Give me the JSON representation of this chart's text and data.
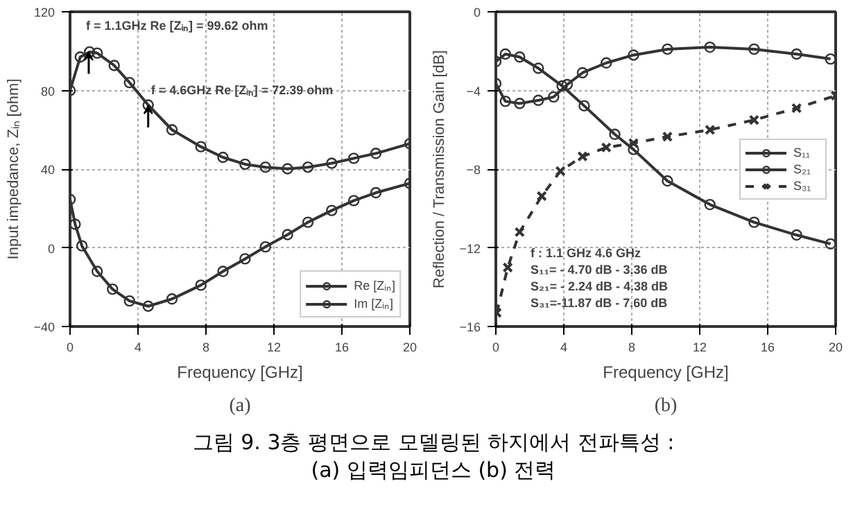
{
  "chart_data": [
    {
      "type": "line",
      "title": "(a)",
      "xlabel": "Frequency [GHz]",
      "ylabel": "Input impedance, Zᵢₙ [ohm]",
      "xlim": [
        0,
        20
      ],
      "ylim": [
        -40,
        120
      ],
      "xticks": [
        0,
        4,
        8,
        12,
        16,
        20
      ],
      "yticks": [
        -40,
        0,
        40,
        80,
        120
      ],
      "grid": true,
      "legend": "bottom right",
      "series": [
        {
          "name": "Re [Zᵢₙ]",
          "color": "#333333",
          "marker": "circle",
          "x": [
            0,
            0.6,
            1.15,
            1.6,
            2.6,
            3.5,
            4.6,
            6,
            7.7,
            9,
            10.3,
            11.5,
            12.8,
            14,
            15.4,
            16.7,
            18,
            20
          ],
          "values": [
            80,
            97,
            99.6,
            99,
            92.7,
            84,
            72.6,
            60,
            51.4,
            46,
            42.5,
            41,
            40.2,
            41,
            43,
            45.5,
            48,
            53
          ]
        },
        {
          "name": "Im [Zᵢₙ]",
          "color": "#333333",
          "marker": "circle",
          "x": [
            0,
            0.3,
            0.7,
            1.6,
            2.5,
            3.5,
            4.6,
            6,
            7.7,
            9,
            10.3,
            11.5,
            12.8,
            14,
            15.4,
            16.7,
            18,
            20
          ],
          "values": [
            24.6,
            12,
            1,
            -12,
            -21,
            -27,
            -29.7,
            -26,
            -19,
            -12,
            -5.6,
            0.5,
            6.7,
            13,
            19,
            24,
            28,
            32.8
          ]
        }
      ],
      "annotations": [
        {
          "text": "f = 1.1GHz Re [Zᵢₙ] = 99.62 ohm",
          "x": 1.1,
          "y": 99.62
        },
        {
          "text": "f = 4.6GHz Re [Zᵢₙ] = 72.39 ohm",
          "x": 4.6,
          "y": 72.39
        }
      ]
    },
    {
      "type": "line",
      "title": "(b)",
      "xlabel": "Frequency [GHz]",
      "ylabel": "Reflection / Transmission Gain [dB]",
      "xlim": [
        0,
        20
      ],
      "ylim": [
        -16,
        0
      ],
      "xticks": [
        0,
        4,
        8,
        12,
        16,
        20
      ],
      "yticks": [
        -16,
        -12,
        -8,
        -4,
        0
      ],
      "grid": true,
      "legend": "right",
      "series": [
        {
          "name": "S₁₁",
          "color": "#333333",
          "marker": "circle",
          "line_style": "solid",
          "x": [
            0,
            0.56,
            1.4,
            2.5,
            3.4,
            4.2,
            5.1,
            6.5,
            8.1,
            10.1,
            12.6,
            15.2,
            17.7,
            19.7
          ],
          "values": [
            -3.65,
            -4.55,
            -4.66,
            -4.5,
            -4.33,
            -3.7,
            -3.1,
            -2.6,
            -2.2,
            -1.9,
            -1.8,
            -1.9,
            -2.15,
            -2.4
          ]
        },
        {
          "name": "S₂₁",
          "color": "#333333",
          "marker": "circle",
          "line_style": "solid",
          "x": [
            0,
            0.56,
            1.4,
            2.5,
            3.9,
            5.2,
            7,
            8.1,
            10.1,
            12.6,
            15.2,
            17.7,
            19.7
          ],
          "values": [
            -2.53,
            -2.15,
            -2.3,
            -2.87,
            -3.77,
            -4.78,
            -6.23,
            -7.0,
            -8.6,
            -9.8,
            -10.7,
            -11.35,
            -11.8
          ]
        },
        {
          "name": "S₃₁",
          "color": "#333333",
          "marker": "cross",
          "line_style": "dashed",
          "x": [
            0.05,
            0.7,
            1.4,
            2.7,
            3.8,
            5.1,
            6.5,
            8.1,
            10.1,
            12.6,
            15.2,
            17.7,
            20
          ],
          "values": [
            -15.3,
            -13,
            -11.2,
            -9.37,
            -8.1,
            -7.35,
            -6.9,
            -6.68,
            -6.35,
            -6.0,
            -5.5,
            -4.9,
            -4.26
          ]
        }
      ],
      "annotations": [
        "f  :    1.1 GHz    4.6 GHz",
        "S₁₁= - 4.70 dB  - 3.36 dB",
        "S₂₁= - 2.24 dB  - 4.38 dB",
        "S₃₁=-11.87 dB  - 7.60 dB",
        "그림 9. 3층 평면으로 모델링된 하지에서 전파특성 :",
        "(a) 입력임피던스 (b) 전력"
      ]
    }
  ]
}
